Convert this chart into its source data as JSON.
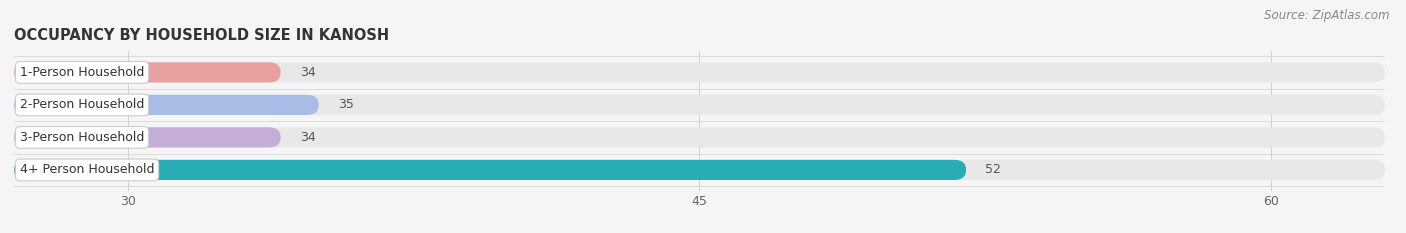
{
  "title": "OCCUPANCY BY HOUSEHOLD SIZE IN KANOSH",
  "source": "Source: ZipAtlas.com",
  "categories": [
    "1-Person Household",
    "2-Person Household",
    "3-Person Household",
    "4+ Person Household"
  ],
  "values": [
    34,
    35,
    34,
    52
  ],
  "bar_colors": [
    "#e8a0a0",
    "#a8bce8",
    "#c4add8",
    "#29adb5"
  ],
  "bg_bar_color": "#e8e8e8",
  "xlim_min": 27,
  "xlim_max": 63,
  "xticks": [
    30,
    45,
    60
  ],
  "background_color": "#f5f5f5",
  "bar_height": 0.62,
  "label_color": "#555555",
  "title_fontsize": 10.5,
  "source_fontsize": 8.5,
  "tick_fontsize": 9,
  "bar_label_fontsize": 9,
  "category_fontsize": 9,
  "grid_color": "#d0d0d0",
  "title_color": "#333333",
  "source_color": "#888888",
  "category_text_color": "#333333",
  "value_label_color": "#555555",
  "white_box_color": "#ffffff",
  "white_box_edge_color": "#cccccc"
}
